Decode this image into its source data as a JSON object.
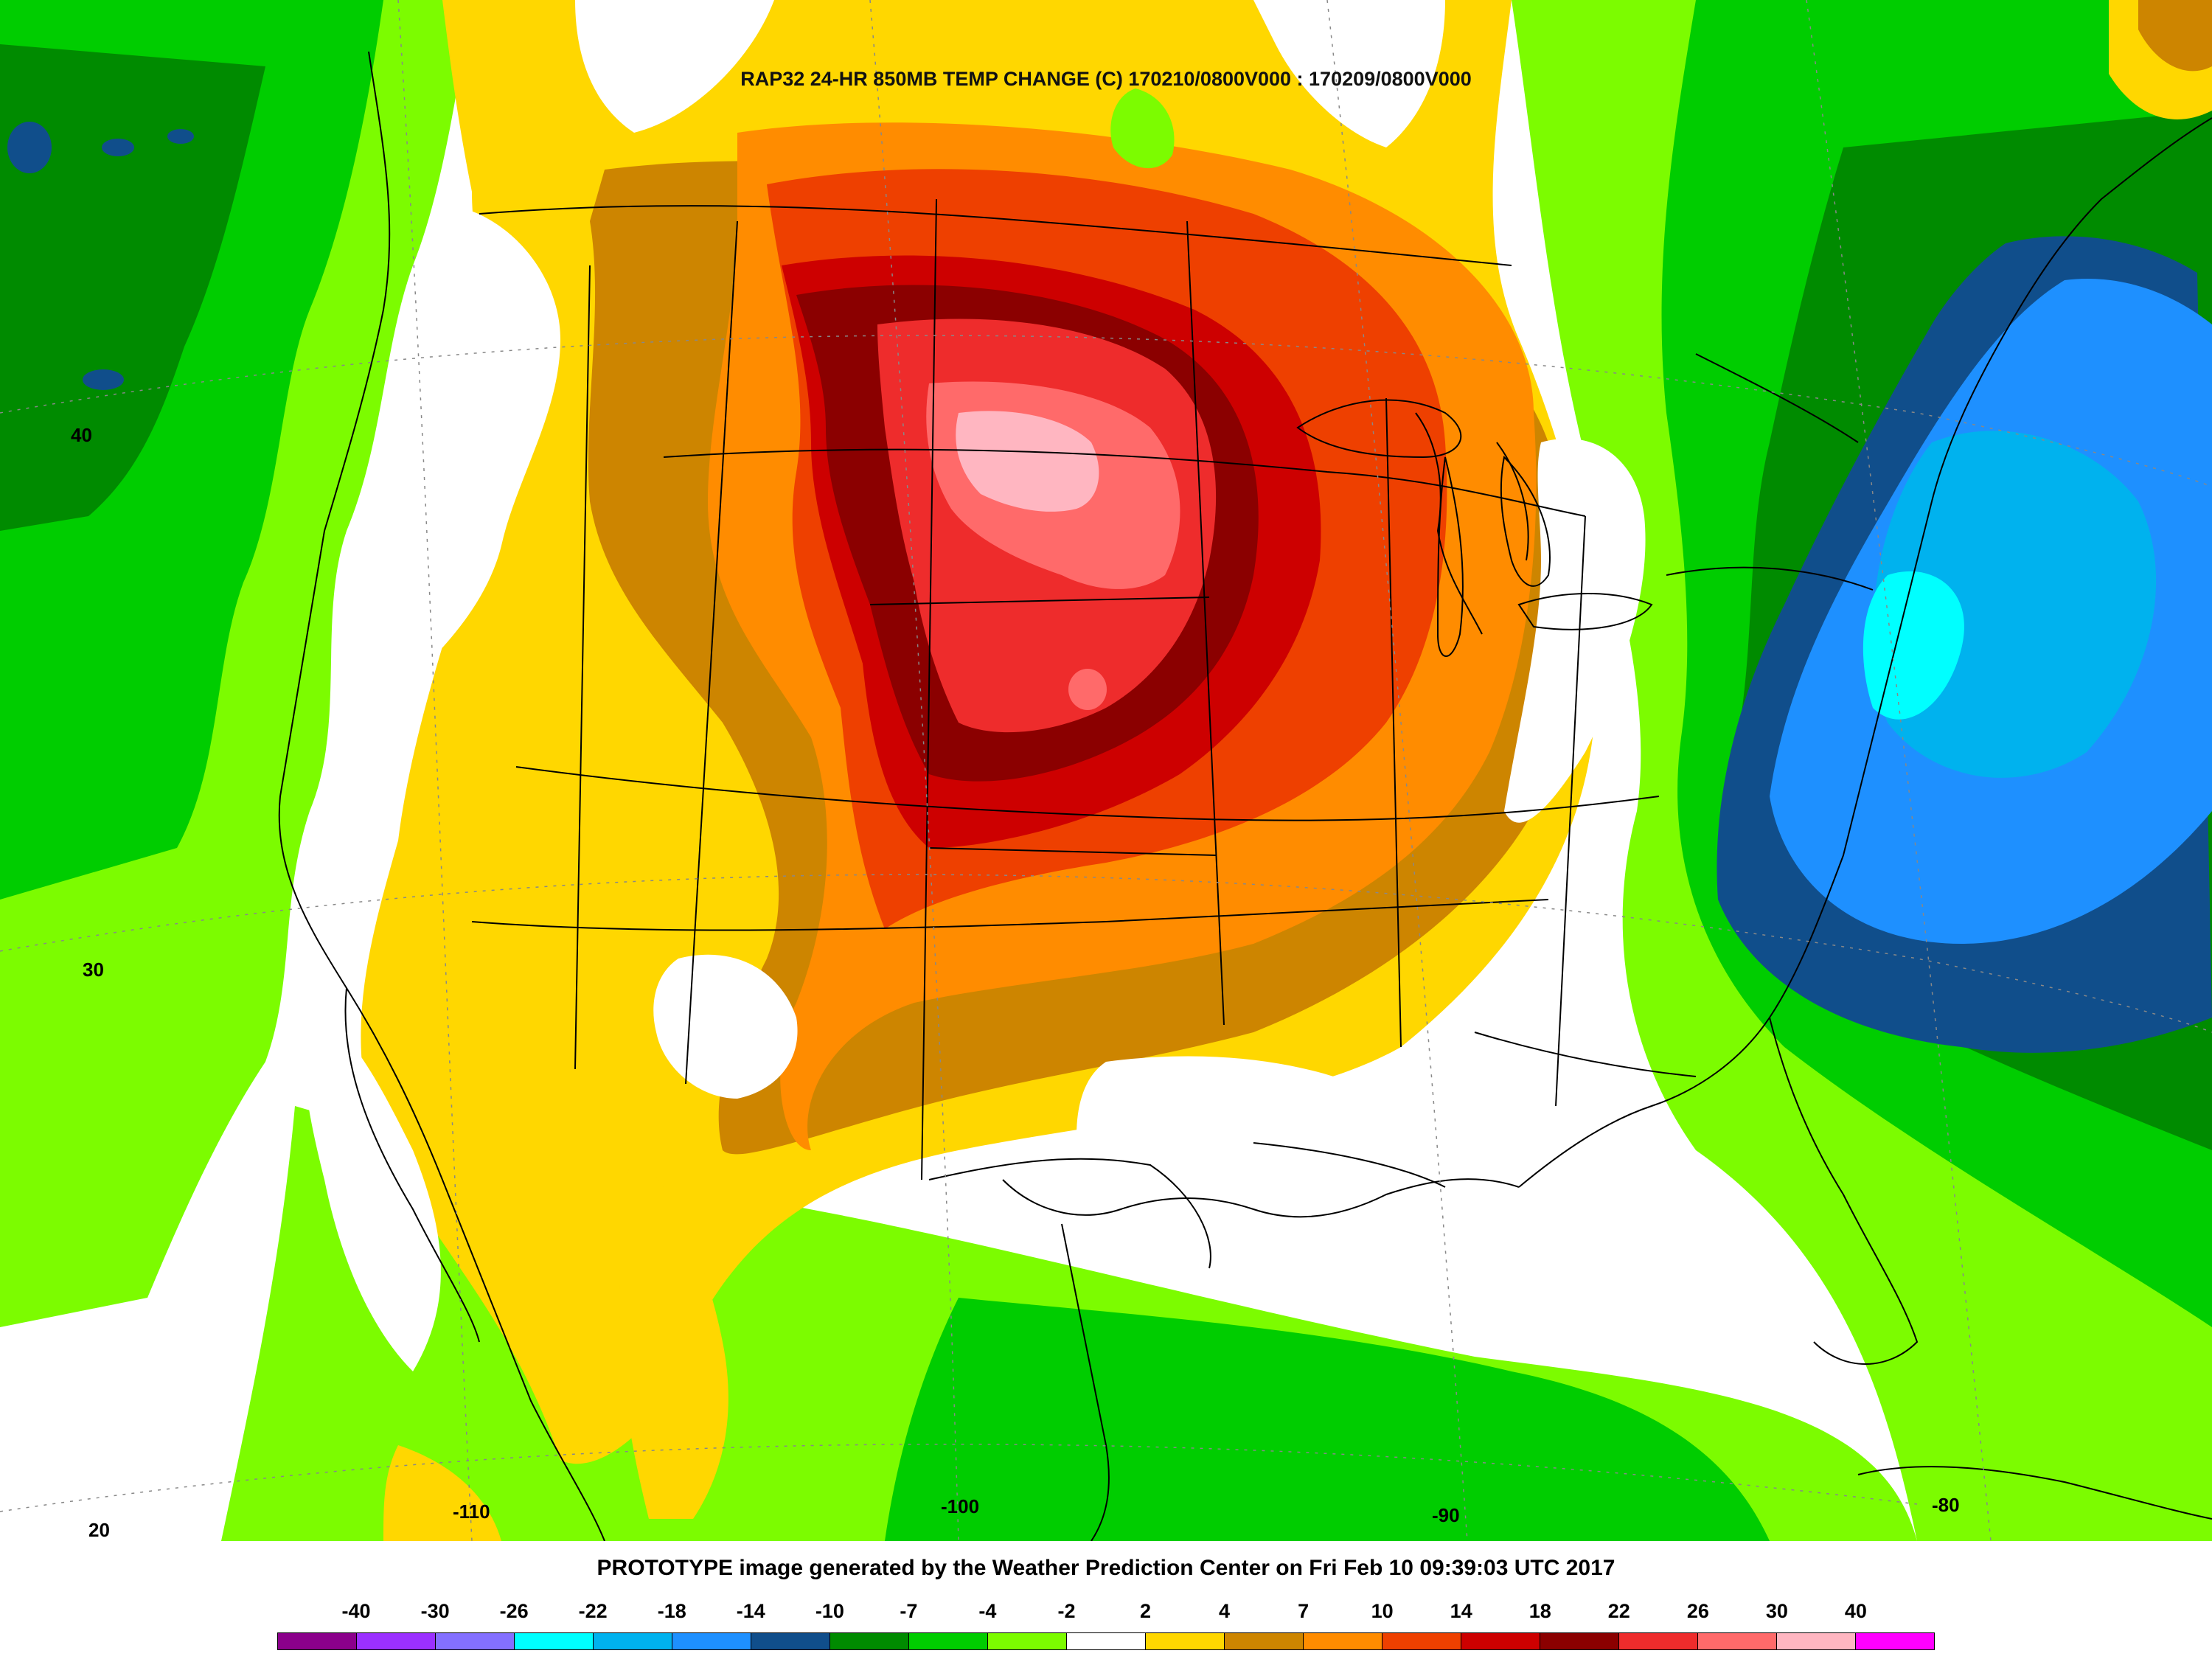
{
  "title": "RAP32 24-HR 850MB TEMP CHANGE (C) 170210/0800V000 : 170209/0800V000",
  "footer_text": "PROTOTYPE image generated by the Weather Prediction Center on Fri Feb 10 09:39:03 UTC 2017",
  "latitude_labels": [
    "40",
    "30",
    "20"
  ],
  "longitude_labels": [
    "-110",
    "-100",
    "-90",
    "-80"
  ],
  "legend": {
    "labels": [
      "-40",
      "-30",
      "-26",
      "-22",
      "-18",
      "-14",
      "-10",
      "-7",
      "-4",
      "-2",
      "2",
      "4",
      "7",
      "10",
      "14",
      "18",
      "22",
      "26",
      "30",
      "40"
    ],
    "colors": [
      "#8b008b",
      "#9b30ff",
      "#8470ff",
      "#00ffff",
      "#00b2ee",
      "#1e90ff",
      "#104e8b",
      "#008b00",
      "#00cd00",
      "#7cfc00",
      "#ffffff",
      "#ffd700",
      "#cd8500",
      "#ff8c00",
      "#ee4000",
      "#cd0000",
      "#8b0000",
      "#ee2c2c",
      "#ff6a6a",
      "#ffb6c1",
      "#ff00ff"
    ]
  },
  "map_colors": {
    "strong_warming": "#ff6a6a",
    "warming": "#cd0000",
    "mild_warming": "#ffd700",
    "neutral": "#ffffff",
    "mild_cooling": "#7cfc00",
    "cooling": "#008b00",
    "strong_cooling": "#1e90ff"
  }
}
